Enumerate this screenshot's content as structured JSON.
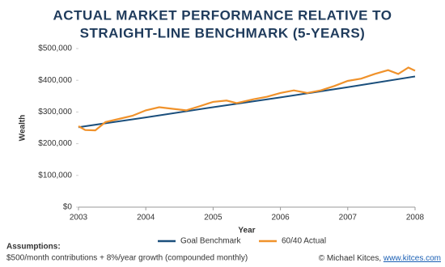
{
  "chart_data": {
    "type": "line",
    "title": [
      "ACTUAL MARKET PERFORMANCE RELATIVE TO",
      "STRAIGHT-LINE BENCHMARK (5-YEARS)"
    ],
    "x_label": "Year",
    "y_label": "Wealth",
    "xlim": [
      2003,
      2008
    ],
    "xticks": [
      2003,
      2004,
      2005,
      2006,
      2007,
      2008
    ],
    "ylim": [
      0,
      500000
    ],
    "yticks": [
      {
        "value": 0,
        "label": "$0"
      },
      {
        "value": 100000,
        "label": "$100,000"
      },
      {
        "value": 200000,
        "label": "$200,000"
      },
      {
        "value": 300000,
        "label": "$300,000"
      },
      {
        "value": 400000,
        "label": "$400,000"
      },
      {
        "value": 500000,
        "label": "$500,000"
      }
    ],
    "grid": false,
    "legend": "bottom",
    "series": [
      {
        "name": "Goal Benchmark",
        "color": "#1b4f7c",
        "x": [
          2003,
          2004,
          2005,
          2006,
          2007,
          2008
        ],
        "values": [
          252000,
          283000,
          315000,
          346000,
          378000,
          412000
        ]
      },
      {
        "name": "60/40 Actual",
        "color": "#f0922b",
        "x": [
          2003,
          2003.1,
          2003.25,
          2003.4,
          2003.6,
          2003.8,
          2004,
          2004.2,
          2004.4,
          2004.6,
          2004.8,
          2005,
          2005.2,
          2005.35,
          2005.6,
          2005.8,
          2006,
          2006.2,
          2006.4,
          2006.6,
          2006.8,
          2007,
          2007.2,
          2007.4,
          2007.6,
          2007.75,
          2007.9,
          2008
        ],
        "values": [
          255000,
          243000,
          242000,
          268000,
          278000,
          288000,
          305000,
          315000,
          310000,
          305000,
          318000,
          332000,
          336000,
          328000,
          340000,
          348000,
          360000,
          368000,
          360000,
          368000,
          382000,
          398000,
          405000,
          420000,
          432000,
          420000,
          440000,
          430000
        ]
      }
    ],
    "assumptions_title": "Assumptions:",
    "assumptions": "$500/month contributions + 8%/year growth (compounded monthly)",
    "credit": "© Michael Kitces, ",
    "credit_link": "www.kitces.com"
  }
}
